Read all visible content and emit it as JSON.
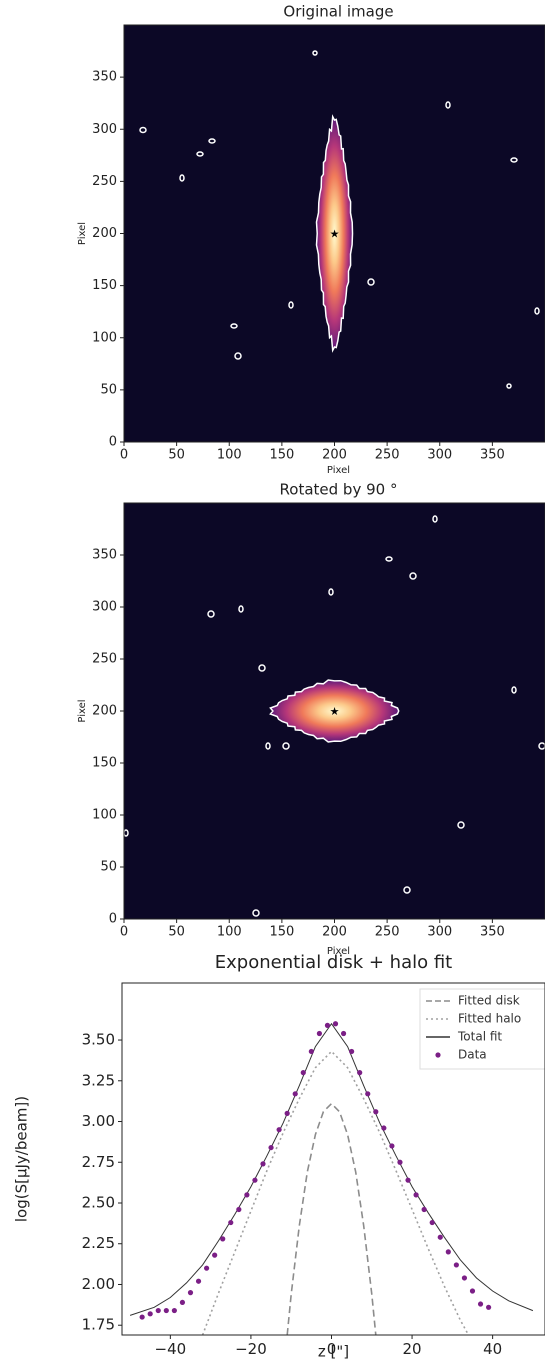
{
  "chart_data": [
    {
      "type": "image",
      "title": "Original image",
      "xlabel": "Pixel",
      "ylabel": "Pixel",
      "xlim": [
        0,
        400
      ],
      "ylim": [
        0,
        400
      ],
      "xticks": [
        0,
        50,
        100,
        150,
        200,
        250,
        300,
        350
      ],
      "yticks": [
        0,
        50,
        100,
        150,
        200,
        250,
        300,
        350
      ],
      "orientation": "vertical",
      "marker": {
        "x": 200,
        "y": 200
      }
    },
    {
      "type": "image",
      "title": "Rotated by 90 °",
      "xlabel": "Pixel",
      "ylabel": "Pixel",
      "xlim": [
        0,
        400
      ],
      "ylim": [
        0,
        400
      ],
      "xticks": [
        0,
        50,
        100,
        150,
        200,
        250,
        300,
        350
      ],
      "yticks": [
        0,
        50,
        100,
        150,
        200,
        250,
        300,
        350
      ],
      "orientation": "horizontal",
      "marker": {
        "x": 200,
        "y": 200
      }
    },
    {
      "type": "line",
      "title": "Exponential disk + halo fit",
      "xlabel": "z [\"]",
      "ylabel": "log(S[μJy/beam])",
      "xlim": [
        -52,
        53
      ],
      "ylim": [
        1.69,
        3.85
      ],
      "xticks": [
        {
          "value": -40,
          "label": "−40"
        },
        {
          "value": -20,
          "label": "−20"
        },
        0,
        20,
        40
      ],
      "yticks": [
        1.75,
        {
          "value": 2,
          "label": "2.00"
        },
        2.25,
        {
          "value": 2.5,
          "label": "2.50"
        },
        2.75,
        {
          "value": 3,
          "label": "3.00"
        },
        3.25,
        {
          "value": 3.5,
          "label": "3.50"
        }
      ],
      "legend": "upper right",
      "series": [
        {
          "name": "Fitted disk",
          "color": "#8c8c8c",
          "style": "dashed",
          "x": [
            -11,
            -10,
            -8,
            -6,
            -4,
            -2,
            0,
            2,
            4,
            6,
            8,
            10,
            11
          ],
          "values": [
            1.69,
            1.94,
            2.36,
            2.69,
            2.92,
            3.06,
            3.11,
            3.06,
            2.92,
            2.69,
            2.36,
            1.94,
            1.69
          ]
        },
        {
          "name": "Fitted halo",
          "color": "#a0a0a0",
          "style": "dotted",
          "x": [
            -32,
            -28,
            -24,
            -20,
            -16,
            -12,
            -8,
            -4,
            0,
            4,
            8,
            12,
            16,
            20,
            24,
            28,
            32,
            34
          ],
          "values": [
            1.69,
            1.95,
            2.2,
            2.45,
            2.7,
            2.93,
            3.14,
            3.33,
            3.43,
            3.33,
            3.14,
            2.93,
            2.7,
            2.46,
            2.22,
            1.99,
            1.78,
            1.69
          ]
        },
        {
          "name": "Total fit",
          "color": "#333333",
          "style": "solid",
          "x": [
            -50,
            -44,
            -40,
            -36,
            -32,
            -28,
            -24,
            -20,
            -16,
            -12,
            -8,
            -4,
            0,
            4,
            8,
            12,
            16,
            20,
            24,
            28,
            32,
            36,
            40,
            44,
            50
          ],
          "values": [
            1.81,
            1.86,
            1.92,
            2.01,
            2.12,
            2.27,
            2.43,
            2.6,
            2.79,
            2.99,
            3.22,
            3.46,
            3.6,
            3.46,
            3.22,
            2.99,
            2.79,
            2.6,
            2.44,
            2.29,
            2.15,
            2.04,
            1.96,
            1.9,
            1.84
          ]
        },
        {
          "name": "Data",
          "color": "#7b1f86",
          "style": "scatter",
          "x": [
            -47,
            -45,
            -43,
            -41,
            -39,
            -37,
            -35,
            -33,
            -31,
            -29,
            -27,
            -25,
            -23,
            -21,
            -19,
            -17,
            -15,
            -13,
            -11,
            -9,
            -7,
            -5,
            -3,
            -1,
            1,
            3,
            5,
            7,
            9,
            11,
            13,
            15,
            17,
            19,
            21,
            23,
            25,
            27,
            29,
            31,
            33,
            35,
            37,
            39
          ],
          "values": [
            1.8,
            1.82,
            1.84,
            1.84,
            1.84,
            1.89,
            1.95,
            2.02,
            2.1,
            2.18,
            2.28,
            2.38,
            2.46,
            2.55,
            2.64,
            2.74,
            2.84,
            2.95,
            3.05,
            3.17,
            3.3,
            3.43,
            3.54,
            3.59,
            3.6,
            3.54,
            3.43,
            3.3,
            3.17,
            3.06,
            2.96,
            2.85,
            2.75,
            2.64,
            2.55,
            2.46,
            2.38,
            2.29,
            2.2,
            2.12,
            2.04,
            1.96,
            1.88,
            1.86
          ]
        }
      ]
    }
  ]
}
